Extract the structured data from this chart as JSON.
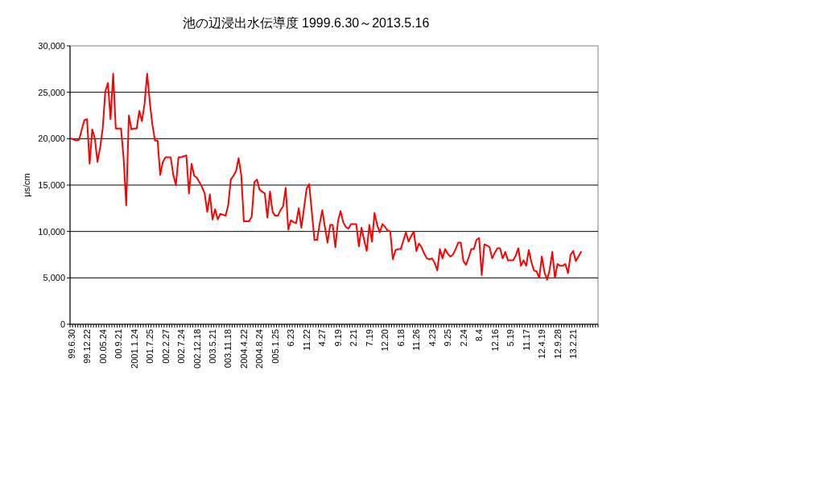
{
  "chart_data": {
    "type": "line",
    "title": "池の辺浸出水伝導度 1999.6.30～2013.5.16",
    "ylabel": "μs/cm",
    "categories": [
      "99.6.30",
      null,
      null,
      null,
      null,
      null,
      "99.12.22",
      null,
      null,
      null,
      null,
      null,
      "00.05.24",
      null,
      null,
      null,
      null,
      null,
      "00.9.21",
      null,
      null,
      null,
      null,
      null,
      "2001.1.24",
      null,
      null,
      null,
      null,
      null,
      "001.7.25",
      null,
      null,
      null,
      null,
      null,
      "002.2.27",
      null,
      null,
      null,
      null,
      null,
      "002.7.24",
      null,
      null,
      null,
      null,
      null,
      "002.12.18",
      null,
      null,
      null,
      null,
      null,
      "003.5.21",
      null,
      null,
      null,
      null,
      null,
      "003.11.18",
      null,
      null,
      null,
      null,
      null,
      "2004.4.22",
      null,
      null,
      null,
      null,
      null,
      "2004.8.24",
      null,
      null,
      null,
      null,
      null,
      "005.1.25",
      null,
      null,
      null,
      null,
      null,
      "6.23",
      null,
      null,
      null,
      null,
      null,
      "11.22",
      null,
      null,
      null,
      null,
      null,
      "4.27",
      null,
      null,
      null,
      null,
      null,
      "9.19",
      null,
      null,
      null,
      null,
      null,
      "2.21",
      null,
      null,
      null,
      null,
      null,
      "7.19",
      null,
      null,
      null,
      null,
      null,
      "12.20",
      null,
      null,
      null,
      null,
      null,
      "6.18",
      null,
      null,
      null,
      null,
      null,
      "11.26",
      null,
      null,
      null,
      null,
      null,
      "4.23",
      null,
      null,
      null,
      null,
      null,
      "9.25",
      null,
      null,
      null,
      null,
      null,
      "2.24",
      null,
      null,
      null,
      null,
      null,
      "8.4",
      null,
      null,
      null,
      null,
      null,
      "12.16",
      null,
      null,
      null,
      null,
      null,
      "5.19",
      null,
      null,
      null,
      null,
      null,
      "11.17",
      null,
      null,
      null,
      null,
      null,
      "12.4.19",
      null,
      null,
      null,
      null,
      null,
      "12.9.28",
      null,
      null,
      null,
      null,
      null,
      "13.2.21",
      null,
      null,
      null,
      null,
      null,
      null,
      null,
      null,
      null
    ],
    "series": [
      {
        "color": "#ff0000",
        "values": [
          20000,
          19900,
          19800,
          19900,
          21000,
          22000,
          22100,
          17300,
          21000,
          20000,
          17500,
          19000,
          21100,
          25100,
          26000,
          22100,
          27000,
          21100,
          21100,
          21100,
          17900,
          12800,
          22500,
          21000,
          21100,
          21100,
          23000,
          21900,
          23700,
          27000,
          24000,
          21500,
          19800,
          19800,
          16100,
          17500,
          18000,
          18000,
          18000,
          16100,
          15000,
          18000,
          18000,
          18100,
          18200,
          14100,
          17300,
          16000,
          15800,
          15300,
          14800,
          14100,
          12100,
          14000,
          11300,
          12400,
          11300,
          11900,
          11800,
          11700,
          12800,
          15600,
          16000,
          16500,
          17900,
          16100,
          11100,
          11100,
          11100,
          11600,
          15300,
          15600,
          14500,
          14300,
          14100,
          11500,
          14300,
          12100,
          11700,
          11700,
          12300,
          12700,
          14700,
          10200,
          11200,
          11000,
          10900,
          12500,
          10400,
          12500,
          14600,
          15100,
          12100,
          9100,
          9100,
          10800,
          12300,
          10500,
          8800,
          10700,
          10700,
          8300,
          11100,
          12200,
          11000,
          10500,
          10300,
          10800,
          10800,
          10800,
          8400,
          10400,
          9100,
          7900,
          10700,
          8900,
          12000,
          10700,
          9900,
          10800,
          10500,
          10100,
          10000,
          7000,
          8000,
          8100,
          8100,
          9000,
          9900,
          8900,
          9500,
          10000,
          7900,
          8700,
          8300,
          7600,
          7100,
          7000,
          7100,
          6600,
          5800,
          8100,
          7100,
          8100,
          7600,
          7300,
          7500,
          8100,
          8800,
          8800,
          6800,
          6400,
          7200,
          8100,
          8100,
          9100,
          9300,
          5300,
          8600,
          8500,
          8300,
          7100,
          7700,
          8200,
          8200,
          7100,
          7800,
          6900,
          6900,
          6900,
          7400,
          8200,
          6300,
          6900,
          6300,
          8000,
          6700,
          5800,
          5700,
          5000,
          7300,
          5600,
          4800,
          5900,
          7800,
          5000,
          6500,
          6300,
          6300,
          6500,
          5500,
          7500,
          7900,
          6800,
          7300,
          7800,
          null,
          null,
          null,
          null,
          null,
          null
        ]
      }
    ],
    "ylim": [
      0,
      30000
    ],
    "yticks": [
      0,
      {
        "value": 5000,
        "label": "5,000"
      },
      {
        "value": 10000,
        "label": "10,000"
      },
      {
        "value": 15000,
        "label": "15,000"
      },
      {
        "value": 20000,
        "label": "20,000"
      },
      {
        "value": 25000,
        "label": "25,000"
      },
      {
        "value": 30000,
        "label": "30,000"
      }
    ],
    "grid": "y"
  }
}
